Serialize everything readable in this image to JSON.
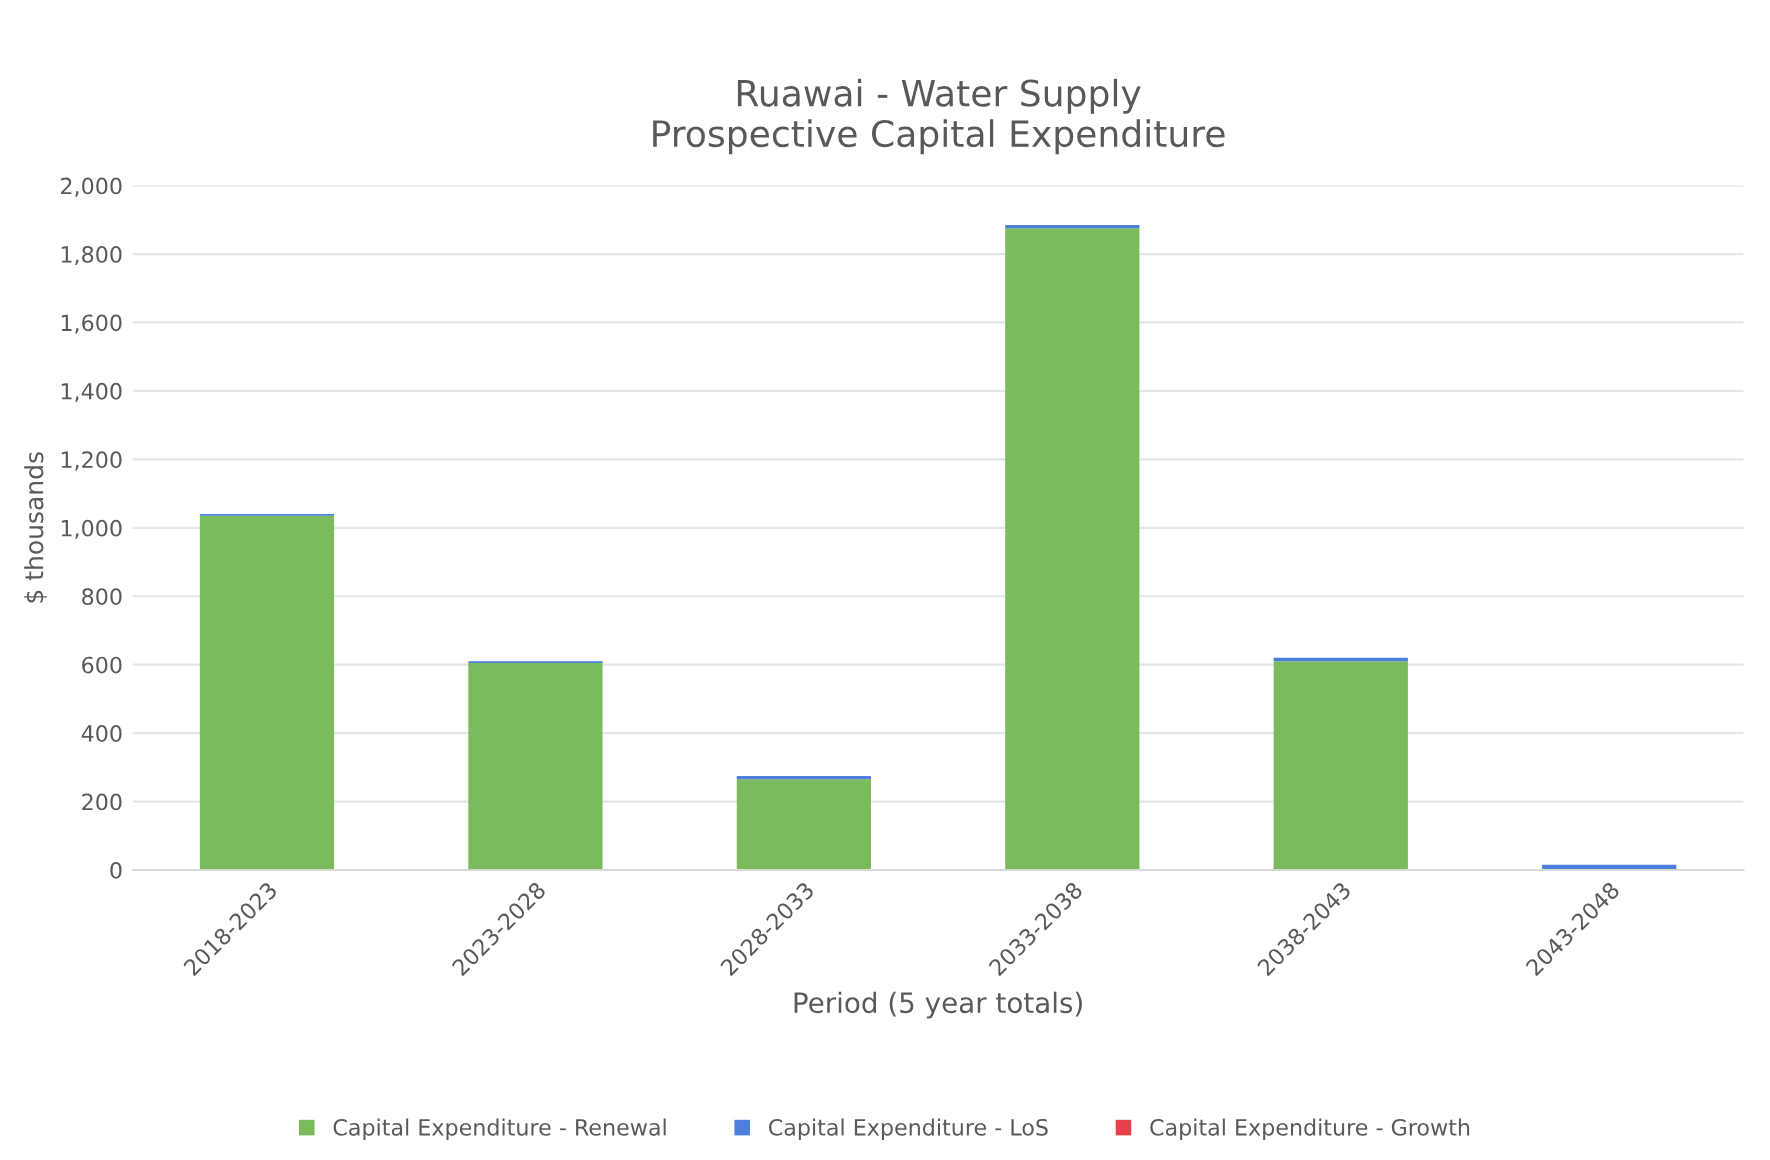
{
  "chart_data": {
    "type": "bar",
    "title": "Ruawai - Water Supply\nProspective Capital Expenditure",
    "xlabel": "Period (5 year totals)",
    "ylabel": "$ thousands",
    "categories": [
      "2018-2023",
      "2023-2028",
      "2028-2033",
      "2033-2038",
      "2038-2043",
      "2043-2048"
    ],
    "stacked": true,
    "series": [
      {
        "name": "Capital Expenditure - Renewal",
        "color": "#7cba5e",
        "values": [
          1035,
          605,
          265,
          1875,
          610,
          0
        ]
      },
      {
        "name": "Capital Expenditure - LoS",
        "color": "#4f7fdc",
        "values": [
          5,
          5,
          10,
          10,
          10,
          15
        ]
      },
      {
        "name": "Capital Expenditure - Growth",
        "color": "#e8404a",
        "values": [
          0,
          0,
          0,
          0,
          0,
          0
        ]
      }
    ],
    "ylim": [
      0,
      2000
    ],
    "yticks": [
      {
        "value": 0,
        "label": "0"
      },
      {
        "value": 200,
        "label": "200"
      },
      {
        "value": 400,
        "label": "400"
      },
      {
        "value": 600,
        "label": "600"
      },
      {
        "value": 800,
        "label": "800"
      },
      {
        "value": 1000,
        "label": "1,000"
      },
      {
        "value": 1200,
        "label": "1,200"
      },
      {
        "value": 1400,
        "label": "1,400"
      },
      {
        "value": 1600,
        "label": "1,600"
      },
      {
        "value": 1800,
        "label": "1,800"
      },
      {
        "value": 2000,
        "label": "2,000"
      }
    ],
    "grid": "y",
    "legend": "bottom"
  }
}
